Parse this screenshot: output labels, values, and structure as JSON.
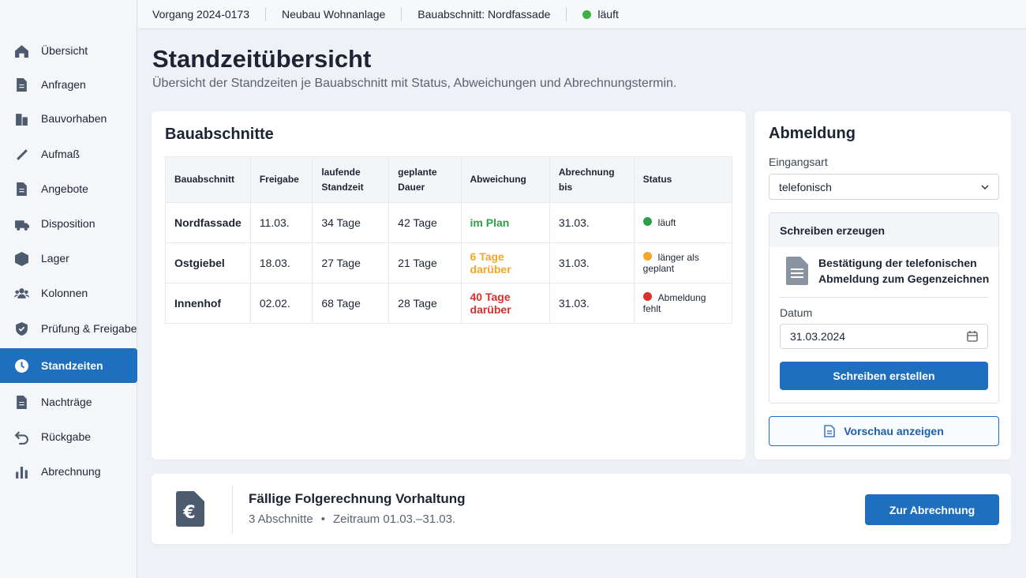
{
  "topbar": {
    "items": [
      "Vorgang 2024-0173",
      "Neubau Wohnanlage",
      "Bauabschnitt: Nordfassade",
      "läuft"
    ],
    "status_color": "#3cb043"
  },
  "sidebar": {
    "items": [
      "Übersicht",
      "Anfragen",
      "Bauvorhaben",
      "Aufmaß",
      "Angebote",
      "Disposition",
      "Lager",
      "Kolonnen",
      "Prüfung & Freigabe",
      "Standzeiten",
      "Nachträge",
      "Rückgabe",
      "Abrechnung"
    ]
  },
  "header": {
    "title": "Standzeitübersicht",
    "subtitle": "Übersicht der Standzeiten je Bauabschnitt mit Status, Abweichungen und Abrechnungstermin."
  },
  "table": {
    "title": "Bauabschnitte",
    "columns": [
      "Bauabschnitt",
      "Freigabe",
      "laufende Standzeit",
      "geplante Dauer",
      "Abweichung",
      "Abrechnung bis",
      "Status"
    ],
    "rows": [
      [
        "Nordfassade",
        "11.03.",
        "34 Tage",
        "42 Tage",
        "im Plan",
        "31.03.",
        "läuft"
      ],
      [
        "Ostgiebel",
        "18.03.",
        "27 Tage",
        "21 Tage",
        "6 Tage darüber",
        "31.03.",
        "länger als geplant"
      ],
      [
        "Innenhof",
        "02.02.",
        "68 Tage",
        "28 Tage",
        "40 Tage darüber",
        "31.03.",
        "Abmeldung fehlt"
      ]
    ],
    "row_colors": [
      "#2e9e4a",
      "#f5a623",
      "#d9302c"
    ]
  },
  "panel": {
    "title": "Abmeldung",
    "channel_label": "Eingangsart",
    "channel_value": "telefonisch",
    "box_title": "Schreiben erzeugen",
    "document": "Bestätigung der telefonischen Abmeldung zum Gegenzeichnen",
    "date_label": "Datum",
    "date_value": "31.03.2024",
    "create_button": "Schreiben erstellen",
    "preview_button": "Vorschau anzeigen"
  },
  "footer": {
    "title": "Fällige Folgerechnung Vorhaltung",
    "sections": "3 Abschnitte",
    "period": "Zeitraum 01.03.–31.03.",
    "button": "Zur Abrechnung"
  }
}
